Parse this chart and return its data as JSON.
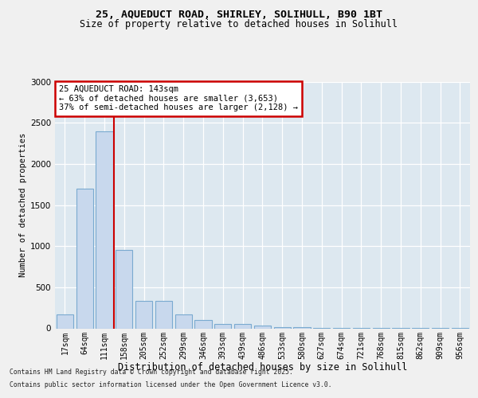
{
  "title_line1": "25, AQUEDUCT ROAD, SHIRLEY, SOLIHULL, B90 1BT",
  "title_line2": "Size of property relative to detached houses in Solihull",
  "xlabel": "Distribution of detached houses by size in Solihull",
  "ylabel": "Number of detached properties",
  "footer_line1": "Contains HM Land Registry data © Crown copyright and database right 2025.",
  "footer_line2": "Contains public sector information licensed under the Open Government Licence v3.0.",
  "categories": [
    "17sqm",
    "64sqm",
    "111sqm",
    "158sqm",
    "205sqm",
    "252sqm",
    "299sqm",
    "346sqm",
    "393sqm",
    "439sqm",
    "486sqm",
    "533sqm",
    "580sqm",
    "627sqm",
    "674sqm",
    "721sqm",
    "768sqm",
    "815sqm",
    "862sqm",
    "909sqm",
    "956sqm"
  ],
  "values": [
    170,
    1700,
    2400,
    950,
    335,
    330,
    165,
    105,
    50,
    50,
    30,
    10,
    10,
    5,
    5,
    2,
    2,
    2,
    1,
    1,
    1
  ],
  "bar_color": "#c8d8ed",
  "bar_edge_color": "#7aaad0",
  "vline_color": "#cc0000",
  "vline_x": 2.5,
  "annotation_text": "25 AQUEDUCT ROAD: 143sqm\n← 63% of detached houses are smaller (3,653)\n37% of semi-detached houses are larger (2,128) →",
  "annotation_box_color": "#ffffff",
  "annotation_box_edge_color": "#cc0000",
  "ylim": [
    0,
    3000
  ],
  "yticks": [
    0,
    500,
    1000,
    1500,
    2000,
    2500,
    3000
  ],
  "fig_facecolor": "#f0f0f0",
  "plot_facecolor": "#dde8f0"
}
